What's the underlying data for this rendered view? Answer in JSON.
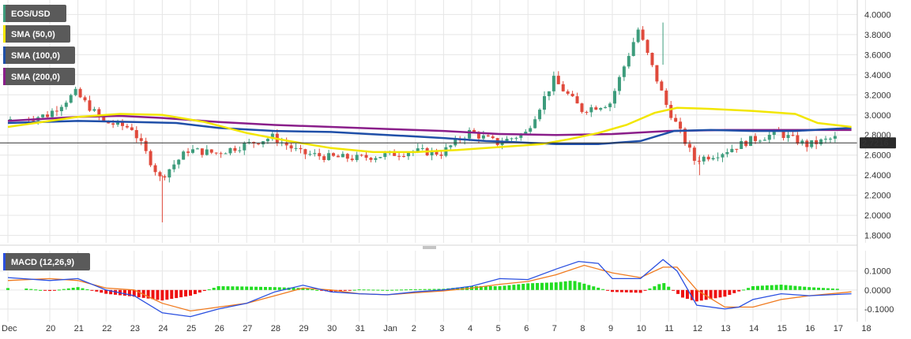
{
  "colors": {
    "up": "#3d9c7c",
    "down": "#e04a3c",
    "sma50": "#f2e600",
    "sma100": "#1f4fa8",
    "sma200": "#8a1e8a",
    "macd_line": "#2a4fe0",
    "signal_line": "#f07a1e",
    "hist_pos": "#22dd22",
    "hist_neg": "#ee1111",
    "legend_bg": "#5a5a5a",
    "price_tag_bg": "#2b2b2b",
    "grid": "#e6e6e6"
  },
  "chart_data": [
    {
      "type": "candlestick",
      "title": "EOS/USD",
      "legend": [
        "EOS/USD",
        "SMA (50,0)",
        "SMA (100,0)",
        "SMA (200,0)"
      ],
      "legend_position": "top-left",
      "ylim": [
        1.75,
        4.05
      ],
      "yticks": [
        "4.0000",
        "3.8000",
        "3.6000",
        "3.4000",
        "3.2000",
        "3.0000",
        "2.8000",
        "2.6000",
        "2.4000",
        "2.2000",
        "2.0000",
        "1.8000"
      ],
      "last_price": "2.7216",
      "grid": true,
      "x_labels": [
        "Dec",
        "20",
        "21",
        "22",
        "23",
        "24",
        "25",
        "26",
        "27",
        "28",
        "29",
        "30",
        "31",
        "Jan",
        "2",
        "3",
        "4",
        "5",
        "6",
        "7",
        "8",
        "9",
        "10",
        "11",
        "12",
        "13",
        "14",
        "15",
        "16",
        "17",
        "18"
      ],
      "day_anchor_values": [
        2.95,
        3.0,
        3.22,
        2.93,
        2.87,
        2.37,
        2.65,
        2.62,
        2.7,
        2.78,
        2.62,
        2.58,
        2.57,
        2.6,
        2.64,
        2.62,
        2.83,
        2.72,
        2.82,
        3.35,
        3.05,
        3.12,
        3.85,
        3.1,
        2.55,
        2.63,
        2.75,
        2.82,
        2.7,
        2.77,
        2.72
      ],
      "sma50": [
        [
          0,
          2.88
        ],
        [
          2,
          2.98
        ],
        [
          3.5,
          3.01
        ],
        [
          5,
          3.0
        ],
        [
          6.5,
          2.93
        ],
        [
          8,
          2.82
        ],
        [
          9.5,
          2.74
        ],
        [
          11,
          2.67
        ],
        [
          12.5,
          2.63
        ],
        [
          14,
          2.63
        ],
        [
          15.5,
          2.65
        ],
        [
          17,
          2.68
        ],
        [
          18.5,
          2.71
        ],
        [
          19.5,
          2.76
        ],
        [
          20.5,
          2.82
        ],
        [
          21.5,
          2.9
        ],
        [
          22.5,
          3.02
        ],
        [
          23.3,
          3.07
        ],
        [
          24.5,
          3.06
        ],
        [
          26,
          3.04
        ],
        [
          27.5,
          3.01
        ],
        [
          28.3,
          2.92
        ],
        [
          29.5,
          2.88
        ]
      ],
      "sma100": [
        [
          0,
          2.92
        ],
        [
          2,
          2.94
        ],
        [
          4,
          2.93
        ],
        [
          5.5,
          2.92
        ],
        [
          7,
          2.87
        ],
        [
          9,
          2.84
        ],
        [
          11,
          2.83
        ],
        [
          13,
          2.8
        ],
        [
          15,
          2.77
        ],
        [
          16.5,
          2.74
        ],
        [
          17.5,
          2.73
        ],
        [
          19,
          2.71
        ],
        [
          20.5,
          2.71
        ],
        [
          22,
          2.74
        ],
        [
          23.2,
          2.84
        ],
        [
          24.5,
          2.85
        ],
        [
          26,
          2.84
        ],
        [
          27.5,
          2.84
        ],
        [
          29.5,
          2.87
        ]
      ],
      "sma200": [
        [
          0,
          2.94
        ],
        [
          2,
          2.98
        ],
        [
          3.5,
          2.99
        ],
        [
          5,
          2.97
        ],
        [
          7,
          2.93
        ],
        [
          9,
          2.9
        ],
        [
          11,
          2.88
        ],
        [
          13,
          2.86
        ],
        [
          15,
          2.84
        ],
        [
          17,
          2.81
        ],
        [
          19,
          2.8
        ],
        [
          21,
          2.81
        ],
        [
          23,
          2.84
        ],
        [
          25,
          2.85
        ],
        [
          27,
          2.85
        ],
        [
          29.5,
          2.85
        ]
      ]
    },
    {
      "type": "macd",
      "title": "MACD (12,26,9)",
      "ylim": [
        -0.15,
        0.19
      ],
      "yticks": [
        "0.1000",
        "0.0000",
        "-0.1000"
      ],
      "macd_line": [
        [
          0,
          0.065
        ],
        [
          1,
          0.05
        ],
        [
          2,
          0.06
        ],
        [
          3,
          0.0
        ],
        [
          4,
          -0.03
        ],
        [
          5,
          -0.12
        ],
        [
          6,
          -0.14
        ],
        [
          7,
          -0.1
        ],
        [
          8,
          -0.07
        ],
        [
          9,
          -0.01
        ],
        [
          10,
          0.025
        ],
        [
          11,
          -0.01
        ],
        [
          12,
          -0.02
        ],
        [
          13,
          -0.025
        ],
        [
          14,
          -0.01
        ],
        [
          15,
          0.0
        ],
        [
          16,
          0.02
        ],
        [
          17,
          0.06
        ],
        [
          18,
          0.055
        ],
        [
          19,
          0.11
        ],
        [
          19.8,
          0.15
        ],
        [
          20.5,
          0.14
        ],
        [
          21,
          0.06
        ],
        [
          22,
          0.06
        ],
        [
          22.8,
          0.16
        ],
        [
          23.3,
          0.1
        ],
        [
          24,
          -0.08
        ],
        [
          25,
          -0.1
        ],
        [
          25.5,
          -0.09
        ],
        [
          26,
          -0.05
        ],
        [
          27,
          -0.02
        ],
        [
          28,
          -0.03
        ],
        [
          29.5,
          -0.02
        ]
      ],
      "signal_line": [
        [
          0,
          0.05
        ],
        [
          1,
          0.06
        ],
        [
          2,
          0.05
        ],
        [
          3,
          0.01
        ],
        [
          4,
          0.0
        ],
        [
          5,
          -0.07
        ],
        [
          6,
          -0.11
        ],
        [
          7,
          -0.09
        ],
        [
          8,
          -0.07
        ],
        [
          9,
          -0.03
        ],
        [
          10,
          0.01
        ],
        [
          11,
          0.0
        ],
        [
          12,
          -0.02
        ],
        [
          13,
          -0.025
        ],
        [
          14,
          -0.015
        ],
        [
          15,
          -0.005
        ],
        [
          16,
          0.01
        ],
        [
          17,
          0.03
        ],
        [
          18,
          0.045
        ],
        [
          19,
          0.08
        ],
        [
          20,
          0.13
        ],
        [
          21,
          0.09
        ],
        [
          22,
          0.065
        ],
        [
          22.8,
          0.12
        ],
        [
          23.3,
          0.12
        ],
        [
          24,
          0.0
        ],
        [
          25,
          -0.09
        ],
        [
          26,
          -0.09
        ],
        [
          27,
          -0.05
        ],
        [
          28,
          -0.03
        ],
        [
          29.5,
          -0.01
        ]
      ],
      "histogram": [
        [
          0,
          0.01
        ],
        [
          1,
          -0.005
        ],
        [
          2,
          0.015
        ],
        [
          3,
          -0.02
        ],
        [
          4,
          -0.035
        ],
        [
          5,
          -0.055
        ],
        [
          6,
          -0.03
        ],
        [
          7,
          0.02
        ],
        [
          8,
          0.018
        ],
        [
          9,
          0.015
        ],
        [
          10,
          0.01
        ],
        [
          11,
          -0.01
        ],
        [
          12,
          0.003
        ],
        [
          13,
          0.0
        ],
        [
          14,
          0.004
        ],
        [
          15,
          0.006
        ],
        [
          16,
          0.02
        ],
        [
          17,
          0.02
        ],
        [
          18,
          0.035
        ],
        [
          19,
          0.04
        ],
        [
          19.6,
          0.05
        ],
        [
          20.5,
          0.012
        ],
        [
          21,
          -0.01
        ],
        [
          22,
          -0.015
        ],
        [
          22.8,
          0.04
        ],
        [
          23.5,
          -0.04
        ],
        [
          24,
          -0.06
        ],
        [
          25,
          -0.035
        ],
        [
          26,
          0.02
        ],
        [
          27,
          0.028
        ],
        [
          28,
          0.015
        ],
        [
          29.5,
          0.002
        ]
      ]
    }
  ]
}
